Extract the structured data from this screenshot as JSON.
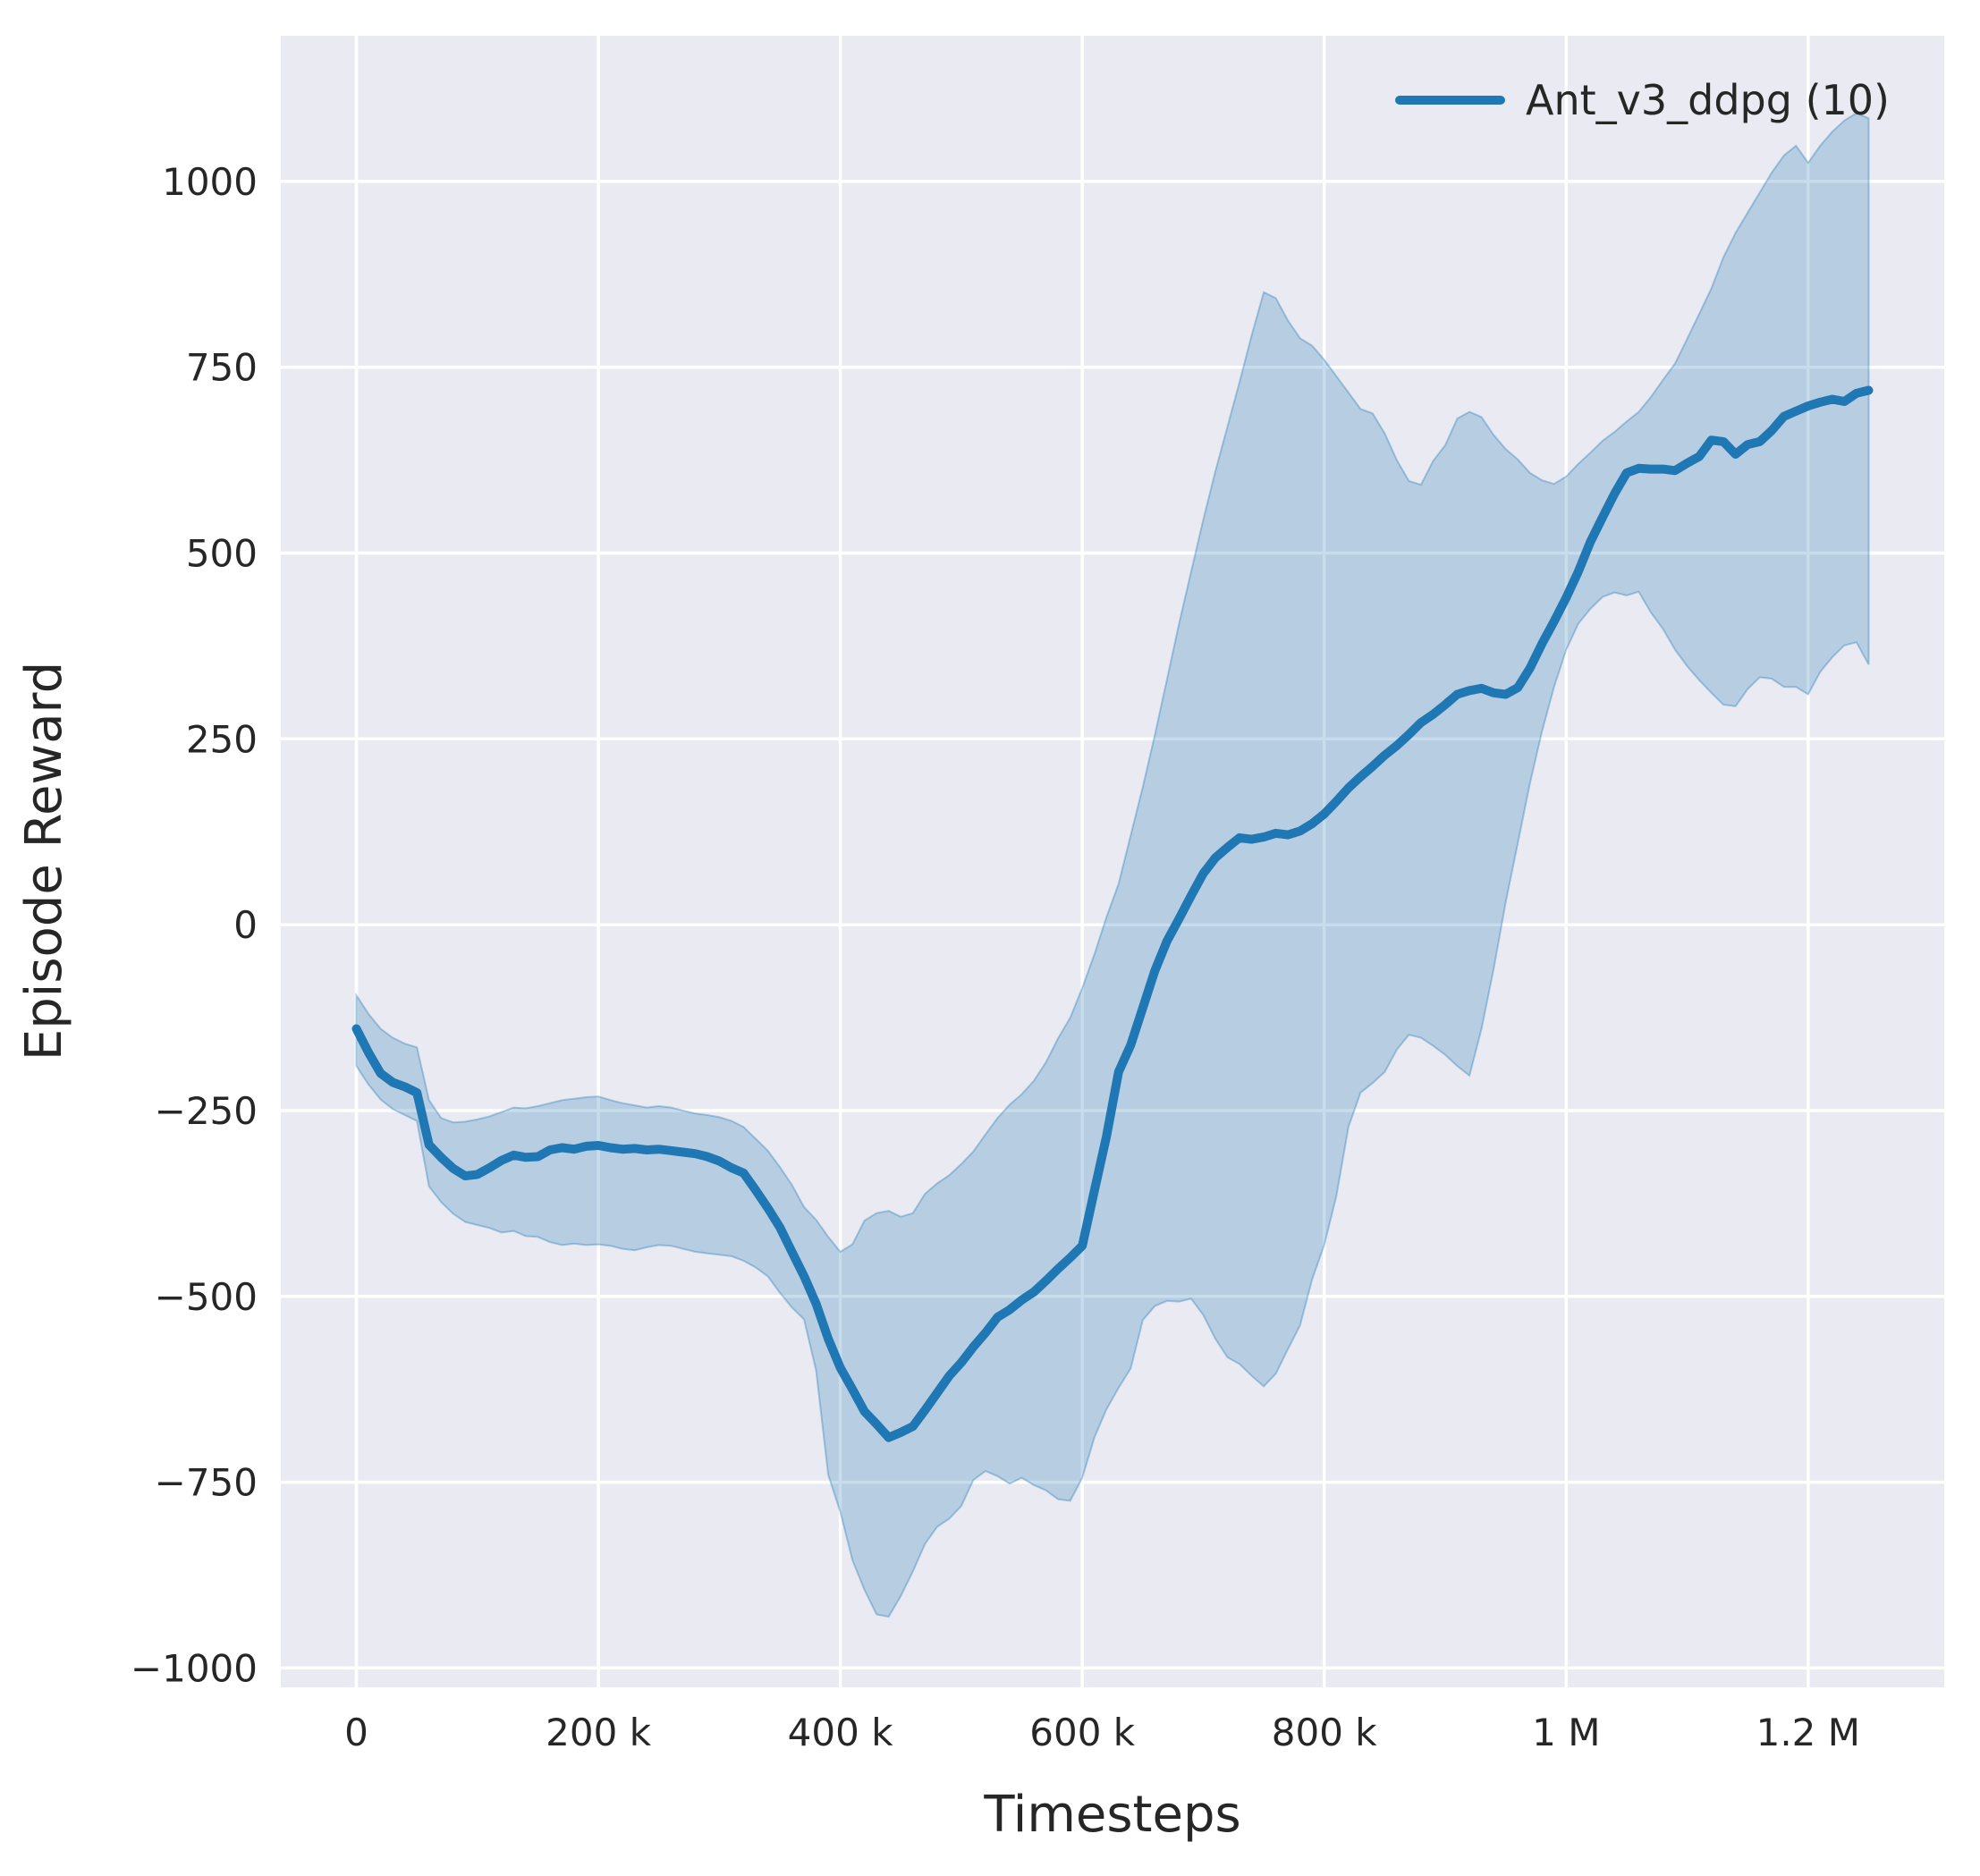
{
  "chart_data": {
    "type": "line",
    "title": "",
    "xlabel": "Timesteps",
    "ylabel": "Episode Reward",
    "grid": true,
    "legend_position": "upper right",
    "xlim": [
      -62500,
      1312500
    ],
    "ylim": [
      -1026,
      1196
    ],
    "x_ticks": [
      {
        "value": 0,
        "label": "0"
      },
      {
        "value": 200000,
        "label": "200 k"
      },
      {
        "value": 400000,
        "label": "400 k"
      },
      {
        "value": 600000,
        "label": "600 k"
      },
      {
        "value": 800000,
        "label": "800 k"
      },
      {
        "value": 1000000,
        "label": "1 M"
      },
      {
        "value": 1200000,
        "label": "1.2 M"
      }
    ],
    "y_ticks": [
      {
        "value": 1000,
        "label": "1000"
      },
      {
        "value": 750,
        "label": "750"
      },
      {
        "value": 500,
        "label": "500"
      },
      {
        "value": 250,
        "label": "250"
      },
      {
        "value": 0,
        "label": "0"
      },
      {
        "value": -250,
        "label": "−250"
      },
      {
        "value": -500,
        "label": "−500"
      },
      {
        "value": -750,
        "label": "−750"
      },
      {
        "value": -1000,
        "label": "−1000"
      }
    ],
    "series": [
      {
        "name": "Ant_v3_ddpg (10)",
        "color": "#1f77b4",
        "band_fill": "#1f77b4",
        "band_opacity": 0.25,
        "x": [
          0,
          10000,
          20000,
          30000,
          40000,
          50000,
          60000,
          70000,
          80000,
          90000,
          100000,
          110000,
          120000,
          130000,
          140000,
          150000,
          160000,
          170000,
          180000,
          190000,
          200000,
          210000,
          220000,
          230000,
          240000,
          250000,
          260000,
          270000,
          280000,
          290000,
          300000,
          310000,
          320000,
          330000,
          340000,
          350000,
          360000,
          370000,
          380000,
          390000,
          400000,
          410000,
          420000,
          430000,
          440000,
          450000,
          460000,
          470000,
          480000,
          490000,
          500000,
          510000,
          520000,
          530000,
          540000,
          550000,
          560000,
          570000,
          580000,
          590000,
          600000,
          610000,
          620000,
          630000,
          640000,
          650000,
          660000,
          670000,
          680000,
          690000,
          700000,
          710000,
          720000,
          730000,
          740000,
          750000,
          760000,
          770000,
          780000,
          790000,
          800000,
          810000,
          820000,
          830000,
          840000,
          850000,
          860000,
          870000,
          880000,
          890000,
          900000,
          910000,
          920000,
          930000,
          940000,
          950000,
          960000,
          970000,
          980000,
          990000,
          1000000,
          1010000,
          1020000,
          1030000,
          1040000,
          1050000,
          1060000,
          1070000,
          1080000,
          1090000,
          1100000,
          1110000,
          1120000,
          1130000,
          1140000,
          1150000,
          1160000,
          1170000,
          1180000,
          1190000,
          1200000,
          1210000,
          1220000,
          1230000,
          1240000,
          1250000
        ],
        "mean": [
          -140,
          -172,
          -200,
          -212,
          -218,
          -226,
          -296,
          -313,
          -328,
          -338,
          -336,
          -327,
          -317,
          -310,
          -313,
          -312,
          -303,
          -300,
          -302,
          -298,
          -297,
          -300,
          -302,
          -301,
          -303,
          -302,
          -304,
          -306,
          -308,
          -312,
          -318,
          -327,
          -334,
          -357,
          -381,
          -407,
          -440,
          -473,
          -510,
          -557,
          -596,
          -625,
          -655,
          -672,
          -690,
          -683,
          -675,
          -653,
          -630,
          -607,
          -589,
          -568,
          -549,
          -528,
          -518,
          -505,
          -494,
          -479,
          -463,
          -448,
          -432,
          -358,
          -285,
          -198,
          -162,
          -112,
          -62,
          -22,
          8,
          39,
          69,
          90,
          104,
          117,
          115,
          118,
          123,
          121,
          126,
          136,
          149,
          166,
          184,
          199,
          213,
          228,
          241,
          256,
          272,
          283,
          296,
          310,
          315,
          318,
          312,
          310,
          319,
          345,
          378,
          408,
          440,
          475,
          515,
          548,
          580,
          608,
          614,
          613,
          613,
          611,
          621,
          630,
          652,
          650,
          633,
          646,
          650,
          665,
          684,
          691,
          698,
          703,
          707,
          704,
          715,
          719
        ],
        "band_upper": [
          -95,
          -120,
          -140,
          -152,
          -160,
          -165,
          -236,
          -260,
          -266,
          -265,
          -262,
          -258,
          -252,
          -246,
          -247,
          -244,
          -240,
          -236,
          -234,
          -232,
          -231,
          -236,
          -240,
          -243,
          -246,
          -244,
          -246,
          -250,
          -254,
          -256,
          -259,
          -264,
          -272,
          -288,
          -304,
          -326,
          -350,
          -380,
          -397,
          -420,
          -440,
          -430,
          -398,
          -388,
          -385,
          -393,
          -388,
          -362,
          -348,
          -337,
          -322,
          -305,
          -282,
          -260,
          -242,
          -228,
          -210,
          -185,
          -153,
          -125,
          -85,
          -40,
          10,
          55,
          120,
          185,
          255,
          330,
          405,
          475,
          545,
          610,
          670,
          730,
          793,
          851,
          843,
          813,
          789,
          779,
          760,
          738,
          716,
          694,
          688,
          661,
          625,
          597,
          592,
          624,
          645,
          681,
          690,
          683,
          659,
          640,
          626,
          608,
          598,
          593,
          603,
          620,
          635,
          651,
          663,
          677,
          690,
          710,
          733,
          755,
          788,
          822,
          856,
          898,
          931,
          958,
          985,
          1012,
          1035,
          1048,
          1025,
          1048,
          1067,
          1082,
          1092,
          1085
        ],
        "band_lower": [
          -190,
          -215,
          -235,
          -248,
          -256,
          -264,
          -352,
          -373,
          -389,
          -400,
          -404,
          -408,
          -414,
          -412,
          -419,
          -420,
          -427,
          -431,
          -429,
          -431,
          -430,
          -432,
          -436,
          -438,
          -434,
          -431,
          -432,
          -436,
          -440,
          -442,
          -444,
          -446,
          -452,
          -461,
          -473,
          -495,
          -515,
          -531,
          -600,
          -740,
          -790,
          -855,
          -895,
          -928,
          -931,
          -903,
          -870,
          -833,
          -810,
          -799,
          -782,
          -747,
          -735,
          -742,
          -752,
          -744,
          -754,
          -761,
          -773,
          -775,
          -744,
          -690,
          -652,
          -623,
          -597,
          -532,
          -513,
          -506,
          -507,
          -503,
          -525,
          -557,
          -582,
          -591,
          -607,
          -621,
          -604,
          -571,
          -539,
          -477,
          -431,
          -365,
          -272,
          -226,
          -213,
          -198,
          -168,
          -148,
          -152,
          -163,
          -175,
          -190,
          -203,
          -140,
          -60,
          30,
          110,
          190,
          260,
          320,
          370,
          405,
          425,
          441,
          447,
          443,
          448,
          420,
          398,
          370,
          348,
          329,
          312,
          296,
          294,
          317,
          333,
          331,
          320,
          320,
          310,
          340,
          360,
          376,
          380,
          350
        ]
      }
    ]
  },
  "styles": {
    "plot_background": "#eaeaf2",
    "grid_color": "#ffffff",
    "text_color": "#262626",
    "figure_background": "#ffffff"
  }
}
